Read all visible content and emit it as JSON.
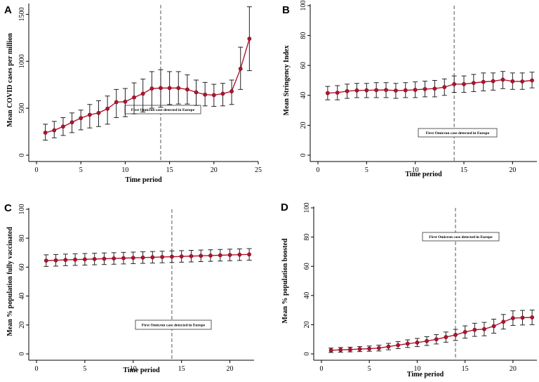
{
  "chart_data": [
    {
      "panel": "A",
      "type": "line",
      "xlabel": "Time period",
      "ylabel": "Mean COVID cases per million",
      "xlim": [
        0,
        25
      ],
      "ylim": [
        0,
        1600
      ],
      "xticks": [
        0,
        5,
        10,
        15,
        20,
        25
      ],
      "yticks": [
        0,
        500,
        1000,
        1500
      ],
      "vline_x": 14,
      "annotation": "First Omicron case detected in Europe",
      "x": [
        1,
        2,
        3,
        4,
        5,
        6,
        7,
        8,
        9,
        10,
        11,
        12,
        13,
        14,
        15,
        16,
        17,
        18,
        19,
        20,
        21,
        22,
        23,
        24
      ],
      "y": [
        240,
        265,
        305,
        350,
        395,
        430,
        450,
        495,
        565,
        570,
        615,
        655,
        710,
        715,
        715,
        715,
        700,
        670,
        645,
        640,
        655,
        680,
        920,
        1240
      ],
      "lower": [
        160,
        185,
        210,
        240,
        270,
        290,
        305,
        330,
        400,
        410,
        440,
        460,
        500,
        510,
        540,
        545,
        545,
        530,
        525,
        520,
        525,
        540,
        700,
        900
      ],
      "upper": [
        330,
        360,
        400,
        450,
        480,
        540,
        580,
        630,
        700,
        710,
        770,
        810,
        890,
        910,
        890,
        890,
        855,
        800,
        775,
        755,
        765,
        800,
        1150,
        1580
      ]
    },
    {
      "panel": "B",
      "type": "line",
      "xlabel": "Time period",
      "ylabel": "Mean Stringency Index",
      "xlim": [
        0,
        22.5
      ],
      "ylim": [
        0,
        100
      ],
      "xticks": [
        0,
        5,
        10,
        15,
        20
      ],
      "yticks": [
        0,
        20,
        40,
        60,
        80,
        100
      ],
      "vline_x": 14,
      "annotation": "First Omicron case detected in Europe",
      "x": [
        1,
        2,
        3,
        4,
        5,
        6,
        7,
        8,
        9,
        10,
        11,
        12,
        13,
        14,
        15,
        16,
        17,
        18,
        19,
        20,
        21,
        22
      ],
      "y": [
        41.5,
        41.8,
        42.8,
        43.3,
        43.4,
        43.5,
        43.6,
        43.2,
        43.4,
        43.7,
        44.2,
        44.5,
        45.5,
        47.5,
        47.5,
        48.3,
        49.0,
        49.5,
        50.5,
        49.4,
        49.3,
        50.0
      ],
      "lower": [
        37,
        37,
        38,
        38.5,
        38.5,
        38.5,
        38.5,
        38,
        38.5,
        38.5,
        39,
        39,
        40,
        42,
        42,
        42.5,
        43,
        43.5,
        44.5,
        44,
        44,
        45
      ],
      "upper": [
        46,
        46.5,
        47.5,
        48,
        48,
        48.5,
        48.5,
        48,
        48.5,
        49,
        49.5,
        50,
        51,
        53,
        53,
        54,
        55,
        55,
        56,
        55,
        55,
        55.5
      ]
    },
    {
      "panel": "C",
      "type": "line",
      "xlabel": "Time period",
      "ylabel": "Mean % population fully vaccinated",
      "xlim": [
        0,
        22.5
      ],
      "ylim": [
        0,
        100
      ],
      "xticks": [
        0,
        5,
        10,
        15,
        20
      ],
      "yticks": [
        0,
        20,
        40,
        60,
        80,
        100
      ],
      "vline_x": 14,
      "annotation": "First Omicron case detected in Europe",
      "x": [
        1,
        2,
        3,
        4,
        5,
        6,
        7,
        8,
        9,
        10,
        11,
        12,
        13,
        14,
        15,
        16,
        17,
        18,
        19,
        20,
        21,
        22
      ],
      "y": [
        64.5,
        64.7,
        65.0,
        65.2,
        65.4,
        65.6,
        65.8,
        66.0,
        66.2,
        66.4,
        66.6,
        66.8,
        67.0,
        67.2,
        67.4,
        67.6,
        67.8,
        68.0,
        68.2,
        68.4,
        68.6,
        68.8
      ],
      "lower": [
        60.5,
        60.7,
        61,
        61.2,
        61.4,
        61.6,
        61.8,
        62,
        62.2,
        62.4,
        62.6,
        62.8,
        63,
        63.2,
        63.4,
        63.6,
        63.8,
        64,
        64.2,
        64.4,
        64.6,
        64.8
      ],
      "upper": [
        68.5,
        68.7,
        69,
        69.2,
        69.4,
        69.6,
        69.8,
        70,
        70.2,
        70.4,
        70.6,
        70.8,
        71,
        71.2,
        71.4,
        71.6,
        71.8,
        72,
        72.2,
        72.4,
        72.6,
        72.8
      ]
    },
    {
      "panel": "D",
      "type": "line",
      "xlabel": "Time period",
      "ylabel": "Mean % population boosted",
      "xlim": [
        0,
        22.5
      ],
      "ylim": [
        0,
        100
      ],
      "xticks": [
        0,
        5,
        10,
        15,
        20
      ],
      "yticks": [
        0,
        20,
        40,
        60,
        80,
        100
      ],
      "vline_x": 14,
      "annotation": "First Omicron case detected in Europe",
      "x": [
        1,
        2,
        3,
        4,
        5,
        6,
        7,
        8,
        9,
        10,
        11,
        12,
        13,
        14,
        15,
        16,
        17,
        18,
        19,
        20,
        21,
        22
      ],
      "y": [
        2.5,
        2.8,
        3.0,
        3.3,
        3.6,
        4.0,
        5.0,
        6.0,
        7.0,
        7.8,
        8.8,
        10.0,
        11.5,
        13.0,
        15.0,
        16.5,
        17.0,
        19.0,
        22.0,
        24.5,
        24.8,
        25.0
      ],
      "lower": [
        1,
        1.2,
        1.4,
        1.6,
        1.8,
        2,
        2.8,
        3.6,
        4.4,
        5,
        5.8,
        6.8,
        8,
        9.2,
        10.8,
        12,
        12.4,
        14.2,
        17,
        19.5,
        19.8,
        20
      ],
      "upper": [
        4,
        4.4,
        4.6,
        5,
        5.4,
        6,
        7.2,
        8.4,
        9.6,
        10.6,
        11.8,
        13.2,
        15,
        16.8,
        19.2,
        21,
        21.6,
        23.8,
        27,
        29.5,
        29.8,
        30
      ]
    }
  ]
}
